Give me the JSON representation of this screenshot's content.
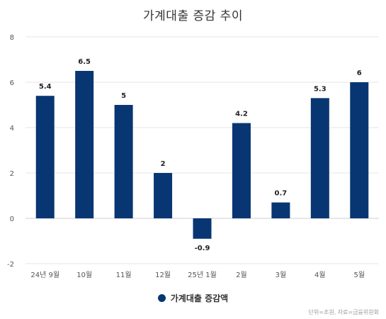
{
  "chart_data": {
    "type": "bar",
    "title": "가계대출 증감 추이",
    "categories": [
      "24년 9월",
      "10월",
      "11월",
      "12월",
      "25년 1월",
      "2월",
      "3월",
      "4월",
      "5월"
    ],
    "series": [
      {
        "name": "가계대출 증감액",
        "values": [
          5.4,
          6.5,
          5,
          2,
          -0.9,
          4.2,
          0.7,
          5.3,
          6
        ],
        "labels": [
          "5.4",
          "6.5",
          "5",
          "2",
          "-0.9",
          "4.2",
          "0.7",
          "5.3",
          "6"
        ]
      }
    ],
    "ylim": [
      -2,
      8
    ],
    "yticks": [
      -2,
      0,
      2,
      4,
      6,
      8
    ],
    "grid": true,
    "legend": "bottom-center",
    "bar_color": "#083672",
    "source": "단위=조원, 자료=금융위원회"
  }
}
